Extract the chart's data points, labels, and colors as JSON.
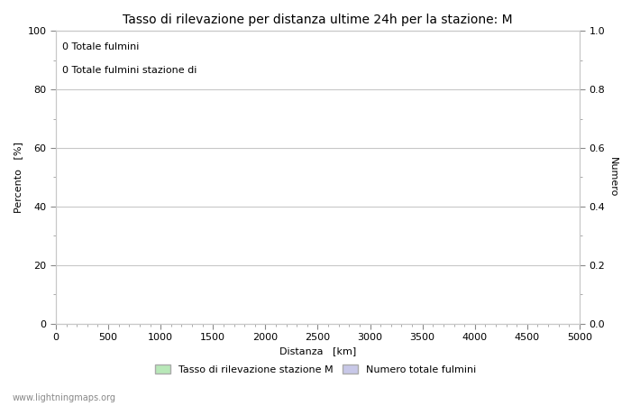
{
  "title": "Tasso di rilevazione per distanza ultime 24h per la stazione: M",
  "xlabel": "Distanza   [km]",
  "ylabel_left": "Percento   [%]",
  "ylabel_right": "Numero",
  "annotation_line1": "0 Totale fulmini",
  "annotation_line2": "0 Totale fulmini stazione di",
  "xlim": [
    0,
    5000
  ],
  "ylim_left": [
    0,
    100
  ],
  "ylim_right": [
    0.0,
    1.0
  ],
  "xticks": [
    0,
    500,
    1000,
    1500,
    2000,
    2500,
    3000,
    3500,
    4000,
    4500,
    5000
  ],
  "yticks_left": [
    0,
    20,
    40,
    60,
    80,
    100
  ],
  "yticks_right": [
    0.0,
    0.2,
    0.4,
    0.6,
    0.8,
    1.0
  ],
  "yticks_right_labels": [
    "0.0",
    "0.2",
    "0.4",
    "0.6",
    "0.8",
    "1.0"
  ],
  "grid_color": "#c8c8c8",
  "background_color": "#ffffff",
  "legend_label_green": "Tasso di rilevazione stazione M",
  "legend_label_blue": "Numero totale fulmini",
  "legend_color_green": "#b8e8b8",
  "legend_color_blue": "#c8c8e8",
  "watermark": "www.lightningmaps.org",
  "title_fontsize": 10,
  "label_fontsize": 8,
  "tick_fontsize": 8,
  "annotation_fontsize": 8
}
